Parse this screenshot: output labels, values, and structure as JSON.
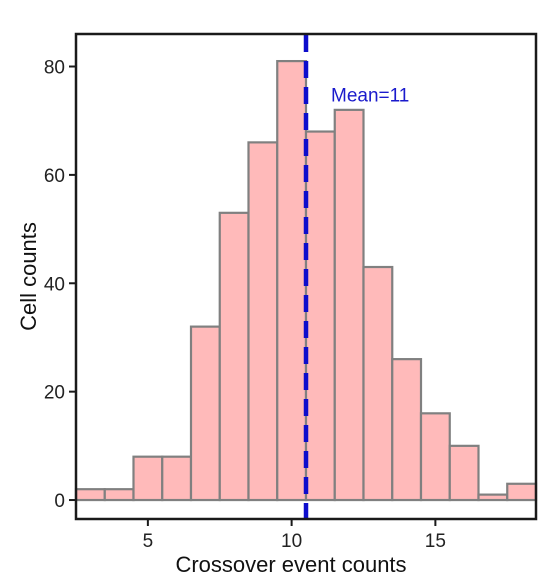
{
  "chart_data": {
    "type": "bar",
    "xlabel": "Crossover event counts",
    "ylabel": "Cell counts",
    "xlim": [
      2.5,
      18.5
    ],
    "ylim": [
      -3.5,
      86
    ],
    "xticks": [
      5,
      10,
      15
    ],
    "yticks": [
      0,
      20,
      40,
      60,
      80
    ],
    "bin_width": 1,
    "bins": [
      {
        "x": 3,
        "count": 2
      },
      {
        "x": 4,
        "count": 2
      },
      {
        "x": 5,
        "count": 8
      },
      {
        "x": 6,
        "count": 8
      },
      {
        "x": 7,
        "count": 32
      },
      {
        "x": 8,
        "count": 53
      },
      {
        "x": 9,
        "count": 66
      },
      {
        "x": 10,
        "count": 81
      },
      {
        "x": 11,
        "count": 68
      },
      {
        "x": 12,
        "count": 72
      },
      {
        "x": 13,
        "count": 43
      },
      {
        "x": 14,
        "count": 26
      },
      {
        "x": 15,
        "count": 16
      },
      {
        "x": 16,
        "count": 10
      },
      {
        "x": 17,
        "count": 1
      },
      {
        "x": 18,
        "count": 3
      }
    ],
    "mean_line": {
      "x": 10.5,
      "label": "Mean=11"
    },
    "grid": false,
    "legend": "none",
    "colors": {
      "bar_fill": "#ffbaba",
      "bar_stroke": "#808080",
      "mean_line": "#0d0dcc",
      "annotation": "#1a1acc",
      "frame": "#1a1a1a"
    }
  }
}
